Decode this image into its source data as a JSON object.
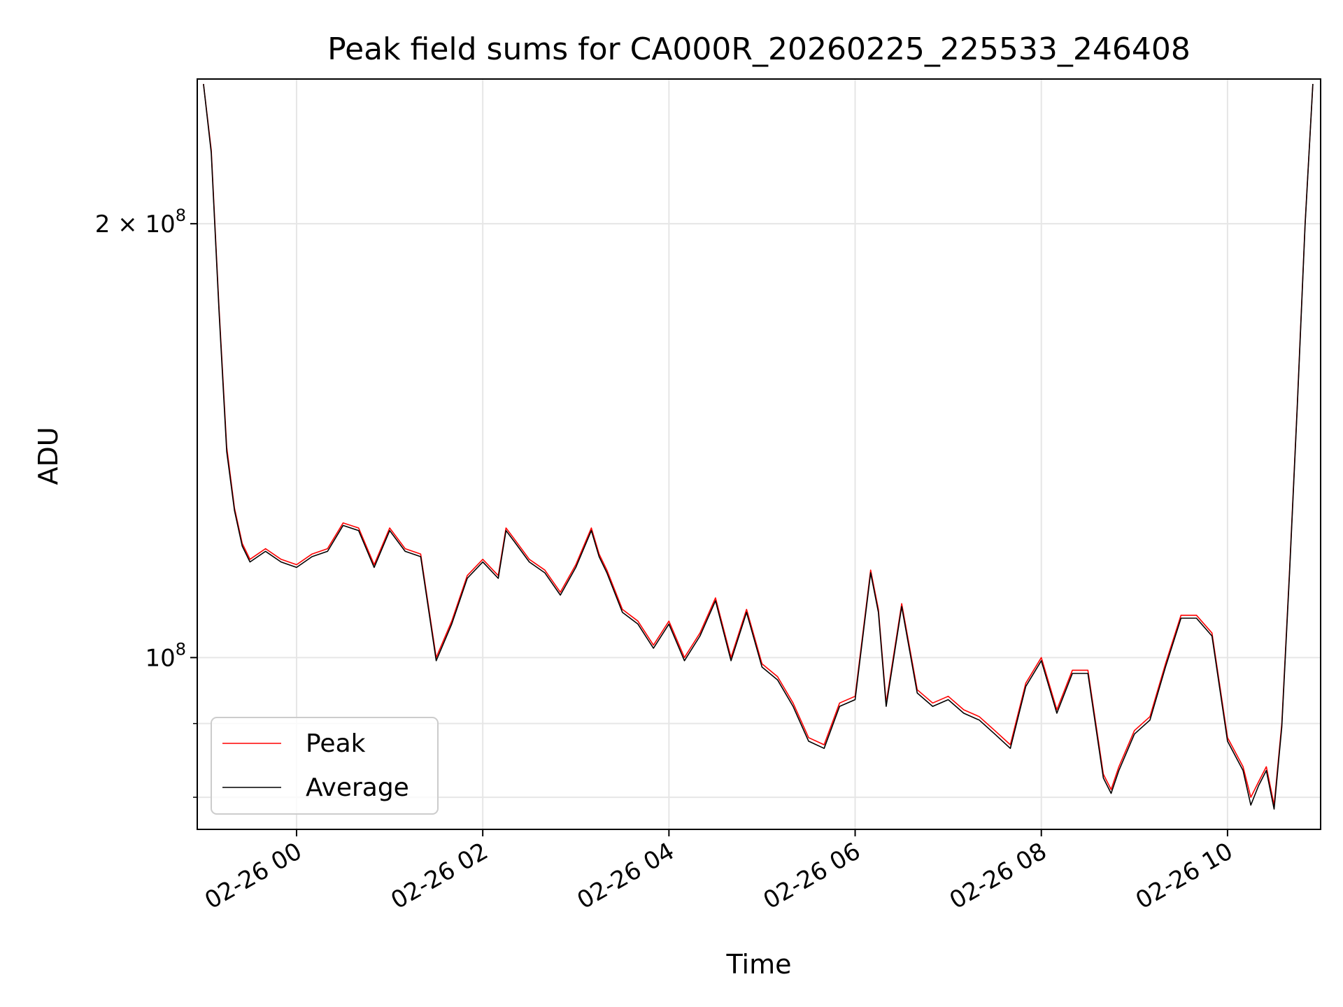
{
  "chart_data": {
    "type": "line",
    "title": "Peak field sums for CA000R_20260225_225533_246408",
    "xlabel": "Time",
    "ylabel": "ADU",
    "yscale": "log",
    "ylim": [
      76000000,
      252000000
    ],
    "xlim": [
      "2026-02-25 22:56",
      "2026-02-26 11:00"
    ],
    "grid": true,
    "legend_position": "lower-left",
    "x_ticks": [
      {
        "t": "2026-02-26 00:00",
        "label": "02-26 00"
      },
      {
        "t": "2026-02-26 02:00",
        "label": "02-26 02"
      },
      {
        "t": "2026-02-26 04:00",
        "label": "02-26 04"
      },
      {
        "t": "2026-02-26 06:00",
        "label": "02-26 06"
      },
      {
        "t": "2026-02-26 08:00",
        "label": "02-26 08"
      },
      {
        "t": "2026-02-26 10:00",
        "label": "02-26 10"
      }
    ],
    "y_major_ticks": [
      {
        "v": 100000000,
        "base": "10",
        "exp": "8",
        "coef": ""
      },
      {
        "v": 200000000,
        "base": "10",
        "exp": "8",
        "coef": "2 × "
      }
    ],
    "y_minor_ticks": [
      80000000,
      90000000
    ],
    "series": [
      {
        "name": "Peak",
        "color": "#ff0000",
        "x": [
          "2026-02-25 23:00",
          "2026-02-25 23:05",
          "2026-02-25 23:10",
          "2026-02-25 23:15",
          "2026-02-25 23:20",
          "2026-02-25 23:25",
          "2026-02-25 23:30",
          "2026-02-25 23:35",
          "2026-02-25 23:40",
          "2026-02-25 23:50",
          "2026-02-26 00:00",
          "2026-02-26 00:10",
          "2026-02-26 00:20",
          "2026-02-26 00:30",
          "2026-02-26 00:40",
          "2026-02-26 00:50",
          "2026-02-26 01:00",
          "2026-02-26 01:10",
          "2026-02-26 01:20",
          "2026-02-26 01:30",
          "2026-02-26 01:40",
          "2026-02-26 01:50",
          "2026-02-26 02:00",
          "2026-02-26 02:10",
          "2026-02-26 02:15",
          "2026-02-26 02:20",
          "2026-02-26 02:30",
          "2026-02-26 02:40",
          "2026-02-26 02:50",
          "2026-02-26 03:00",
          "2026-02-26 03:10",
          "2026-02-26 03:15",
          "2026-02-26 03:20",
          "2026-02-26 03:30",
          "2026-02-26 03:40",
          "2026-02-26 03:50",
          "2026-02-26 04:00",
          "2026-02-26 04:10",
          "2026-02-26 04:20",
          "2026-02-26 04:30",
          "2026-02-26 04:40",
          "2026-02-26 04:50",
          "2026-02-26 05:00",
          "2026-02-26 05:10",
          "2026-02-26 05:20",
          "2026-02-26 05:30",
          "2026-02-26 05:40",
          "2026-02-26 05:50",
          "2026-02-26 06:00",
          "2026-02-26 06:10",
          "2026-02-26 06:15",
          "2026-02-26 06:20",
          "2026-02-26 06:30",
          "2026-02-26 06:40",
          "2026-02-26 06:50",
          "2026-02-26 07:00",
          "2026-02-26 07:10",
          "2026-02-26 07:20",
          "2026-02-26 07:30",
          "2026-02-26 07:40",
          "2026-02-26 07:50",
          "2026-02-26 08:00",
          "2026-02-26 08:10",
          "2026-02-26 08:20",
          "2026-02-26 08:30",
          "2026-02-26 08:40",
          "2026-02-26 08:45",
          "2026-02-26 08:50",
          "2026-02-26 09:00",
          "2026-02-26 09:10",
          "2026-02-26 09:20",
          "2026-02-26 09:30",
          "2026-02-26 09:40",
          "2026-02-26 09:50",
          "2026-02-26 10:00",
          "2026-02-26 10:10",
          "2026-02-26 10:15",
          "2026-02-26 10:20",
          "2026-02-26 10:25",
          "2026-02-26 10:30",
          "2026-02-26 10:35",
          "2026-02-26 10:40",
          "2026-02-26 10:45",
          "2026-02-26 10:50",
          "2026-02-26 10:55"
        ],
        "y": [
          250000000,
          225000000,
          175000000,
          140000000,
          127000000,
          120000000,
          117000000,
          118000000,
          119000000,
          117000000,
          116000000,
          118000000,
          119000000,
          124000000,
          123000000,
          116000000,
          123000000,
          119000000,
          118000000,
          100000000,
          106000000,
          114000000,
          117000000,
          114000000,
          123000000,
          121000000,
          117000000,
          115000000,
          111000000,
          116000000,
          123000000,
          118000000,
          115000000,
          108000000,
          106000000,
          102000000,
          106000000,
          100000000,
          104000000,
          110000000,
          100000000,
          108000000,
          99000000,
          97000000,
          93000000,
          88000000,
          87000000,
          93000000,
          94000000,
          115000000,
          108000000,
          93000000,
          109000000,
          95000000,
          93000000,
          94000000,
          92000000,
          91000000,
          89000000,
          87000000,
          96000000,
          100000000,
          92000000,
          98000000,
          98000000,
          83000000,
          81000000,
          84000000,
          89000000,
          91000000,
          99000000,
          107000000,
          107000000,
          104000000,
          88000000,
          84000000,
          80000000,
          82000000,
          84000000,
          79000000,
          90000000,
          115000000,
          150000000,
          200000000,
          250000000
        ]
      },
      {
        "name": "Average",
        "color": "#000000",
        "x": [
          "2026-02-25 23:00",
          "2026-02-25 23:05",
          "2026-02-25 23:10",
          "2026-02-25 23:15",
          "2026-02-25 23:20",
          "2026-02-25 23:25",
          "2026-02-25 23:30",
          "2026-02-25 23:35",
          "2026-02-25 23:40",
          "2026-02-25 23:50",
          "2026-02-26 00:00",
          "2026-02-26 00:10",
          "2026-02-26 00:20",
          "2026-02-26 00:30",
          "2026-02-26 00:40",
          "2026-02-26 00:50",
          "2026-02-26 01:00",
          "2026-02-26 01:10",
          "2026-02-26 01:20",
          "2026-02-26 01:30",
          "2026-02-26 01:40",
          "2026-02-26 01:50",
          "2026-02-26 02:00",
          "2026-02-26 02:10",
          "2026-02-26 02:15",
          "2026-02-26 02:20",
          "2026-02-26 02:30",
          "2026-02-26 02:40",
          "2026-02-26 02:50",
          "2026-02-26 03:00",
          "2026-02-26 03:10",
          "2026-02-26 03:15",
          "2026-02-26 03:20",
          "2026-02-26 03:30",
          "2026-02-26 03:40",
          "2026-02-26 03:50",
          "2026-02-26 04:00",
          "2026-02-26 04:10",
          "2026-02-26 04:20",
          "2026-02-26 04:30",
          "2026-02-26 04:40",
          "2026-02-26 04:50",
          "2026-02-26 05:00",
          "2026-02-26 05:10",
          "2026-02-26 05:20",
          "2026-02-26 05:30",
          "2026-02-26 05:40",
          "2026-02-26 05:50",
          "2026-02-26 06:00",
          "2026-02-26 06:10",
          "2026-02-26 06:15",
          "2026-02-26 06:20",
          "2026-02-26 06:30",
          "2026-02-26 06:40",
          "2026-02-26 06:50",
          "2026-02-26 07:00",
          "2026-02-26 07:10",
          "2026-02-26 07:20",
          "2026-02-26 07:30",
          "2026-02-26 07:40",
          "2026-02-26 07:50",
          "2026-02-26 08:00",
          "2026-02-26 08:10",
          "2026-02-26 08:20",
          "2026-02-26 08:30",
          "2026-02-26 08:40",
          "2026-02-26 08:45",
          "2026-02-26 08:50",
          "2026-02-26 09:00",
          "2026-02-26 09:10",
          "2026-02-26 09:20",
          "2026-02-26 09:30",
          "2026-02-26 09:40",
          "2026-02-26 09:50",
          "2026-02-26 10:00",
          "2026-02-26 10:10",
          "2026-02-26 10:15",
          "2026-02-26 10:20",
          "2026-02-26 10:25",
          "2026-02-26 10:30",
          "2026-02-26 10:35",
          "2026-02-26 10:40",
          "2026-02-26 10:45",
          "2026-02-26 10:50",
          "2026-02-26 10:55"
        ],
        "y": [
          250000000,
          224000000,
          174000000,
          139000000,
          126500000,
          119500000,
          116500000,
          117500000,
          118500000,
          116500000,
          115500000,
          117500000,
          118500000,
          123500000,
          122500000,
          115500000,
          122500000,
          118500000,
          117500000,
          99500000,
          105500000,
          113500000,
          116500000,
          113500000,
          122500000,
          120500000,
          116500000,
          114500000,
          110500000,
          115500000,
          122500000,
          117500000,
          114500000,
          107500000,
          105500000,
          101500000,
          105500000,
          99500000,
          103500000,
          109500000,
          99500000,
          107500000,
          98500000,
          96500000,
          92500000,
          87500000,
          86500000,
          92500000,
          93500000,
          114500000,
          107500000,
          92500000,
          108500000,
          94500000,
          92500000,
          93500000,
          91500000,
          90500000,
          88500000,
          86500000,
          95500000,
          99500000,
          91500000,
          97500000,
          97500000,
          82500000,
          80500000,
          83500000,
          88500000,
          90500000,
          98500000,
          106500000,
          106500000,
          103500000,
          87500000,
          83500000,
          79000000,
          81500000,
          83500000,
          78500000,
          89500000,
          114500000,
          149500000,
          199500000,
          250000000
        ]
      }
    ]
  }
}
